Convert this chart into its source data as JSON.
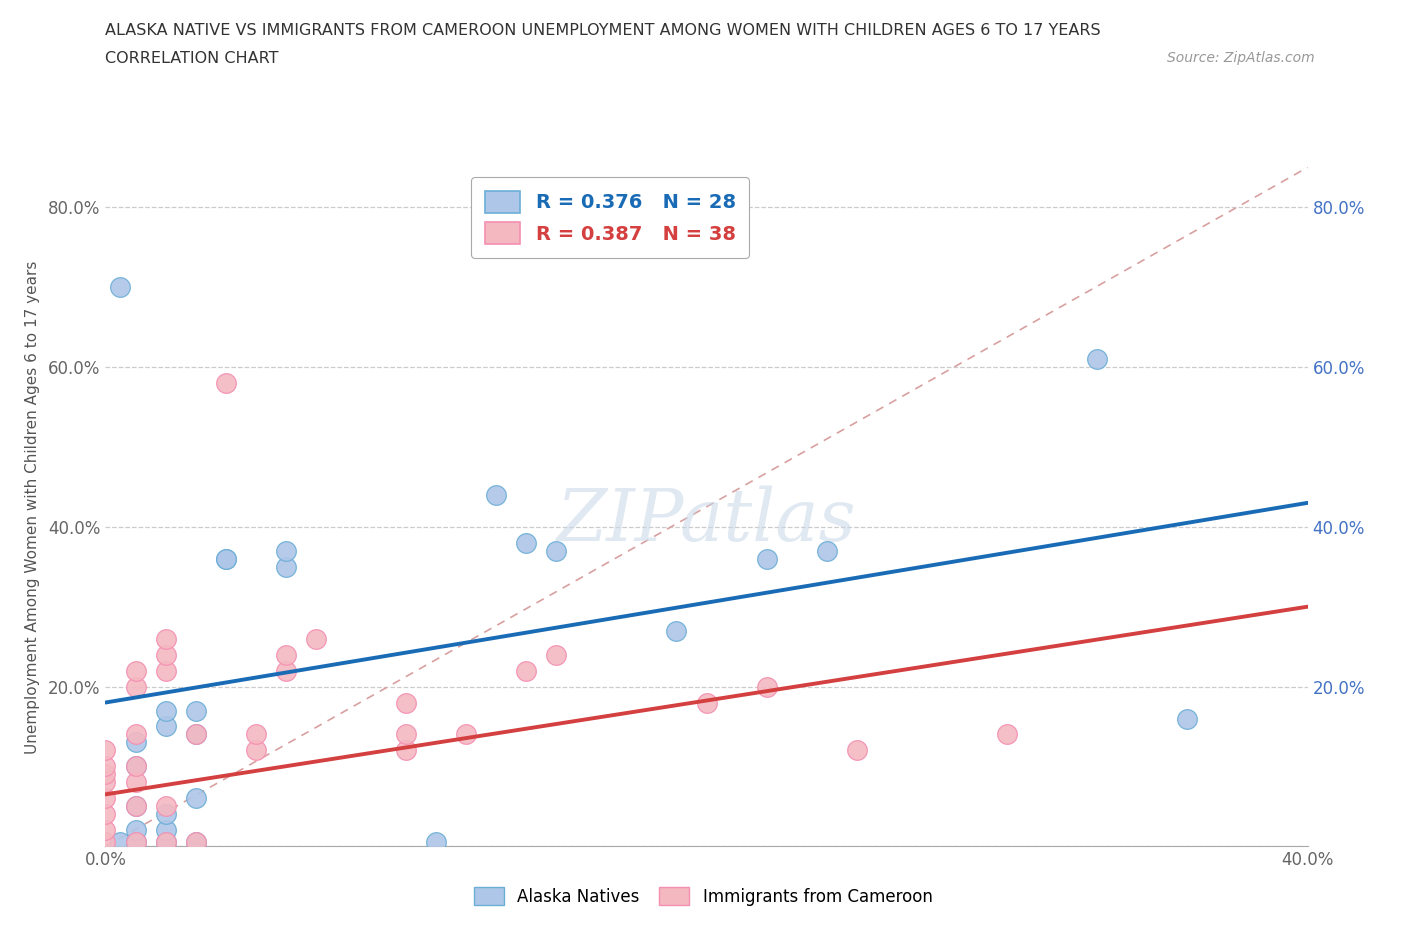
{
  "title_line1": "ALASKA NATIVE VS IMMIGRANTS FROM CAMEROON UNEMPLOYMENT AMONG WOMEN WITH CHILDREN AGES 6 TO 17 YEARS",
  "title_line2": "CORRELATION CHART",
  "source": "Source: ZipAtlas.com",
  "ylabel": "Unemployment Among Women with Children Ages 6 to 17 years",
  "xlim": [
    0.0,
    0.4
  ],
  "ylim": [
    0.0,
    0.85
  ],
  "xtick_positions": [
    0.0,
    0.05,
    0.1,
    0.15,
    0.2,
    0.25,
    0.3,
    0.35,
    0.4
  ],
  "xtick_labels": [
    "0.0%",
    "",
    "",
    "",
    "",
    "",
    "",
    "",
    "40.0%"
  ],
  "ytick_positions": [
    0.0,
    0.2,
    0.4,
    0.6,
    0.8
  ],
  "left_ytick_labels": [
    "",
    "20.0%",
    "40.0%",
    "60.0%",
    "80.0%"
  ],
  "right_ytick_labels": [
    "20.0%",
    "40.0%",
    "60.0%",
    "80.0%"
  ],
  "alaska_color": "#aec6e8",
  "alaska_edge": "#6baed6",
  "cameroon_color": "#f4b8c1",
  "cameroon_edge": "#f48fb1",
  "trend_alaska_color": "#1a6bb5",
  "trend_cameroon_color": "#d44040",
  "trend_diagonal_color": "#d9a0a0",
  "alaska_points": [
    [
      0.005,
      0.7
    ],
    [
      0.005,
      0.005
    ],
    [
      0.01,
      0.005
    ],
    [
      0.01,
      0.02
    ],
    [
      0.01,
      0.05
    ],
    [
      0.01,
      0.1
    ],
    [
      0.01,
      0.13
    ],
    [
      0.02,
      0.005
    ],
    [
      0.02,
      0.02
    ],
    [
      0.02,
      0.04
    ],
    [
      0.02,
      0.15
    ],
    [
      0.02,
      0.17
    ],
    [
      0.03,
      0.005
    ],
    [
      0.03,
      0.06
    ],
    [
      0.03,
      0.14
    ],
    [
      0.03,
      0.17
    ],
    [
      0.04,
      0.36
    ],
    [
      0.04,
      0.36
    ],
    [
      0.06,
      0.35
    ],
    [
      0.06,
      0.37
    ],
    [
      0.11,
      0.005
    ],
    [
      0.13,
      0.44
    ],
    [
      0.14,
      0.38
    ],
    [
      0.15,
      0.37
    ],
    [
      0.19,
      0.27
    ],
    [
      0.22,
      0.36
    ],
    [
      0.24,
      0.37
    ],
    [
      0.33,
      0.61
    ],
    [
      0.36,
      0.16
    ]
  ],
  "cameroon_points": [
    [
      0.0,
      0.005
    ],
    [
      0.0,
      0.02
    ],
    [
      0.0,
      0.04
    ],
    [
      0.0,
      0.06
    ],
    [
      0.0,
      0.08
    ],
    [
      0.0,
      0.09
    ],
    [
      0.0,
      0.1
    ],
    [
      0.0,
      0.12
    ],
    [
      0.01,
      0.005
    ],
    [
      0.01,
      0.05
    ],
    [
      0.01,
      0.08
    ],
    [
      0.01,
      0.1
    ],
    [
      0.01,
      0.14
    ],
    [
      0.01,
      0.2
    ],
    [
      0.01,
      0.22
    ],
    [
      0.02,
      0.005
    ],
    [
      0.02,
      0.05
    ],
    [
      0.02,
      0.22
    ],
    [
      0.02,
      0.24
    ],
    [
      0.02,
      0.26
    ],
    [
      0.03,
      0.005
    ],
    [
      0.03,
      0.14
    ],
    [
      0.04,
      0.58
    ],
    [
      0.05,
      0.12
    ],
    [
      0.05,
      0.14
    ],
    [
      0.06,
      0.22
    ],
    [
      0.06,
      0.24
    ],
    [
      0.07,
      0.26
    ],
    [
      0.1,
      0.12
    ],
    [
      0.1,
      0.14
    ],
    [
      0.1,
      0.18
    ],
    [
      0.12,
      0.14
    ],
    [
      0.14,
      0.22
    ],
    [
      0.15,
      0.24
    ],
    [
      0.2,
      0.18
    ],
    [
      0.22,
      0.2
    ],
    [
      0.25,
      0.12
    ],
    [
      0.3,
      0.14
    ]
  ],
  "alaska_trend": [
    0.0,
    0.4,
    0.18,
    0.43
  ],
  "cameroon_trend": [
    0.0,
    0.4,
    0.065,
    0.3
  ],
  "diagonal_line": [
    0.0,
    0.4,
    0.0,
    0.85
  ]
}
